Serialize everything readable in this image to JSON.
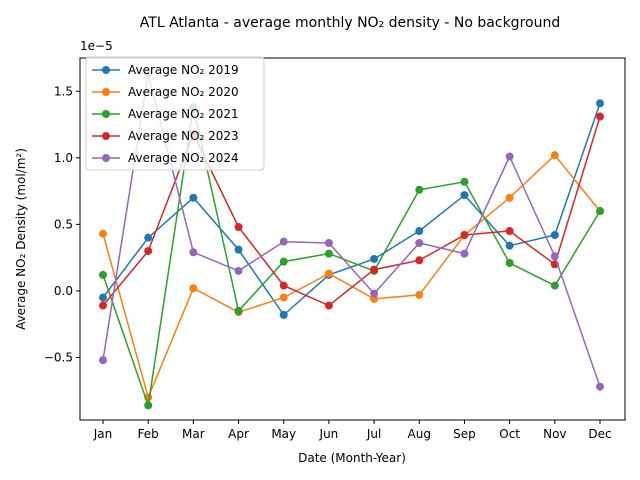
{
  "chart_data": {
    "type": "line",
    "title": "ATL Atlanta - average monthly NO₂ density - No background",
    "xlabel": "Date (Month-Year)",
    "ylabel": "Average NO₂ Density (mol/m²)",
    "offset_label": "1e−5",
    "categories": [
      "Jan",
      "Feb",
      "Mar",
      "Apr",
      "May",
      "Jun",
      "Jul",
      "Aug",
      "Sep",
      "Oct",
      "Nov",
      "Dec"
    ],
    "ylim": [
      -9.7e-06,
      1.75e-05
    ],
    "yticks": [
      -5e-06,
      0,
      5e-06,
      1e-05,
      1.5e-05
    ],
    "ytick_labels": [
      "−0.5",
      "0.0",
      "0.5",
      "1.0",
      "1.5"
    ],
    "grid": false,
    "legend_position": "upper-left",
    "series": [
      {
        "name": "Average NO₂ 2019",
        "color": "#1f77b4",
        "values": [
          -5e-07,
          4e-06,
          7e-06,
          3.1e-06,
          -1.8e-06,
          1.2e-06,
          2.4e-06,
          4.5e-06,
          7.2e-06,
          3.4e-06,
          4.2e-06,
          1.41e-05
        ]
      },
      {
        "name": "Average NO₂ 2020",
        "color": "#ff7f0e",
        "values": [
          4.3e-06,
          -8e-06,
          2e-07,
          -1.6e-06,
          -5e-07,
          1.3e-06,
          -6e-07,
          -3e-07,
          4.2e-06,
          7e-06,
          1.02e-05,
          6e-06
        ]
      },
      {
        "name": "Average NO₂ 2021",
        "color": "#2ca02c",
        "values": [
          1.2e-06,
          -8.6e-06,
          1.38e-05,
          -1.5e-06,
          2.2e-06,
          2.8e-06,
          1.5e-06,
          7.6e-06,
          8.2e-06,
          2.1e-06,
          4e-07,
          6e-06
        ]
      },
      {
        "name": "Average NO₂ 2023",
        "color": "#d62728",
        "values": [
          -1.1e-06,
          3e-06,
          1.18e-05,
          4.8e-06,
          4e-07,
          -1.1e-06,
          1.6e-06,
          2.3e-06,
          4.2e-06,
          4.5e-06,
          2e-06,
          1.31e-05
        ]
      },
      {
        "name": "Average NO₂ 2024",
        "color": "#9467bd",
        "values": [
          -5.2e-06,
          1.63e-05,
          2.9e-06,
          1.5e-06,
          3.7e-06,
          3.6e-06,
          -2e-07,
          3.6e-06,
          2.8e-06,
          1.01e-05,
          2.6e-06,
          -7.2e-06
        ]
      }
    ]
  }
}
